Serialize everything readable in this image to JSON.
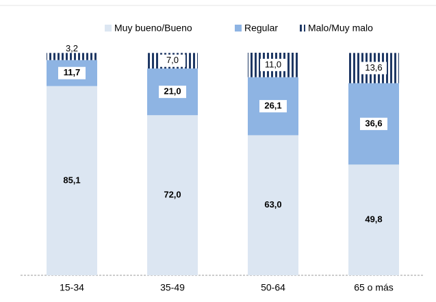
{
  "chart_data": {
    "type": "stacked_bar",
    "categories": [
      "15-34",
      "35-49",
      "50-64",
      "65 o más"
    ],
    "series": [
      {
        "name": "Muy bueno/Bueno",
        "color": "#dce6f2",
        "values": [
          85.1,
          72.0,
          63.0,
          49.8
        ],
        "value_labels": [
          "85,1",
          "72,0",
          "63,0",
          "49,8"
        ]
      },
      {
        "name": "Regular",
        "color": "#8eb4e3",
        "values": [
          11.7,
          21.0,
          26.1,
          36.6
        ],
        "value_labels": [
          "11,7",
          "21,0",
          "26,1",
          "36,6"
        ]
      },
      {
        "name": "Malo/Muy malo",
        "color": "#1f3864",
        "values": [
          3.2,
          7.0,
          11.0,
          13.6
        ],
        "value_labels": [
          "3,2",
          "7,0",
          "11,0",
          "13,6"
        ]
      }
    ]
  }
}
